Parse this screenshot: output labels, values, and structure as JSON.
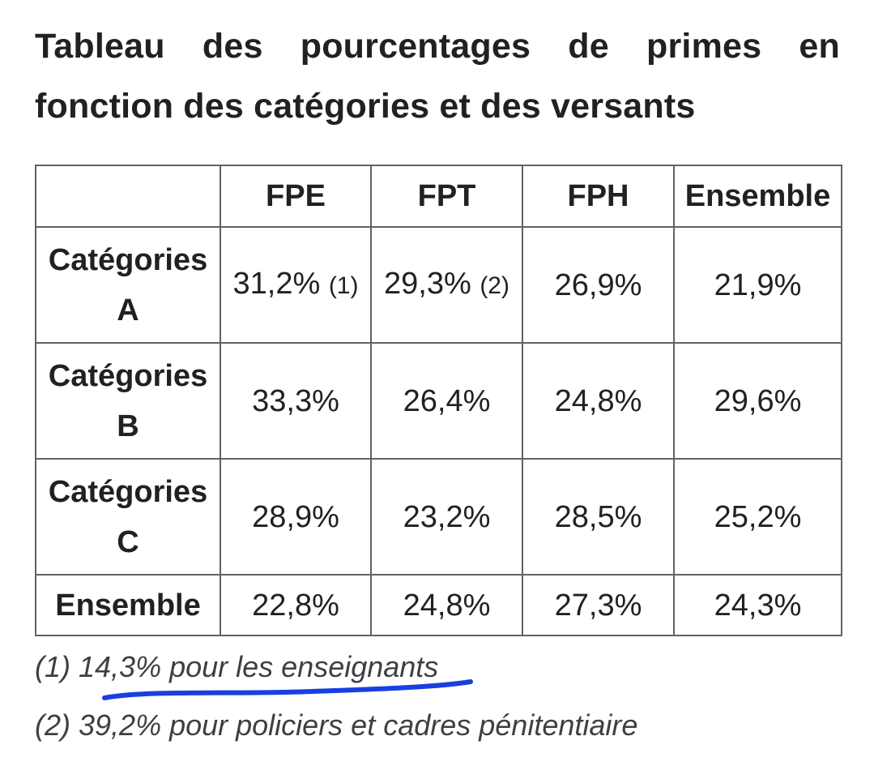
{
  "title": "Tableau des pourcentages de primes en fonction des catégories et des versants",
  "table": {
    "corner": "",
    "columns": [
      "FPE",
      "FPT",
      "FPH",
      "Ensemble"
    ],
    "rows": [
      {
        "label_line1": "Catégories",
        "label_line2": "A",
        "cells": [
          {
            "value": "31,2%",
            "note": "(1)"
          },
          {
            "value": "29,3%",
            "note": "(2)"
          },
          {
            "value": "26,9%",
            "note": ""
          },
          {
            "value": "21,9%",
            "note": ""
          }
        ]
      },
      {
        "label_line1": "Catégories",
        "label_line2": "B",
        "cells": [
          {
            "value": "33,3%",
            "note": ""
          },
          {
            "value": "26,4%",
            "note": ""
          },
          {
            "value": "24,8%",
            "note": ""
          },
          {
            "value": "29,6%",
            "note": ""
          }
        ]
      },
      {
        "label_line1": "Catégories",
        "label_line2": "C",
        "cells": [
          {
            "value": "28,9%",
            "note": ""
          },
          {
            "value": "23,2%",
            "note": ""
          },
          {
            "value": "28,5%",
            "note": ""
          },
          {
            "value": "25,2%",
            "note": ""
          }
        ]
      },
      {
        "label_line1": "Ensemble",
        "label_line2": "",
        "cells": [
          {
            "value": "22,8%",
            "note": ""
          },
          {
            "value": "24,8%",
            "note": ""
          },
          {
            "value": "27,3%",
            "note": ""
          },
          {
            "value": "24,3%",
            "note": ""
          }
        ]
      }
    ]
  },
  "footnotes": {
    "note1": "(1) 14,3% pour les enseignants",
    "note2": "(2) 39,2% pour policiers et cadres pénitentiaire"
  },
  "colors": {
    "text": "#202124",
    "border": "#5f6368",
    "highlight_stroke": "#1a3fe0"
  }
}
